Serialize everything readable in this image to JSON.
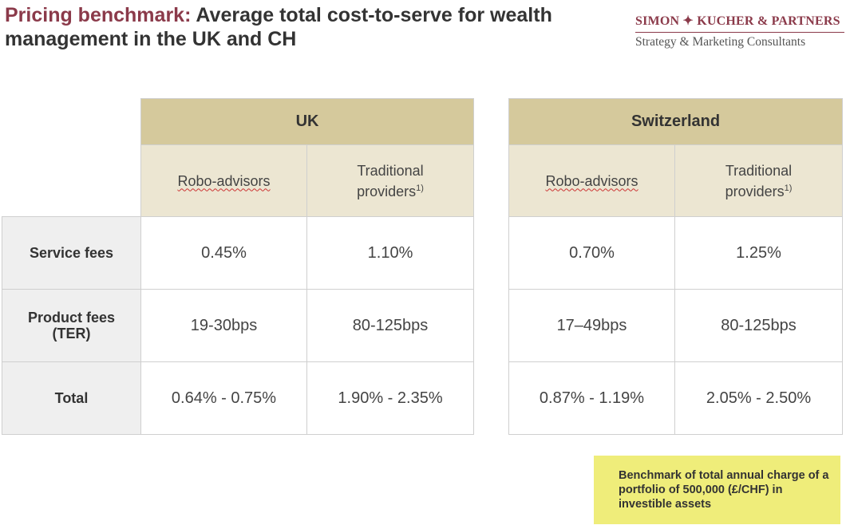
{
  "title": {
    "accent": "Pricing benchmark:",
    "rest": " Average total cost-to-serve for wealth management in the UK and CH"
  },
  "logo": {
    "name": "SIMON ✦ KUCHER & PARTNERS",
    "tagline": "Strategy & Marketing Consultants"
  },
  "uk": {
    "header": "UK",
    "col1": "Robo-advisors",
    "col2_line1": "Traditional",
    "col2_line2": "providers",
    "col2_sup": "1)",
    "rows": [
      {
        "label": "Service fees",
        "robo": "0.45%",
        "trad": "1.10%"
      },
      {
        "label_line1": "Product fees",
        "label_line2": "(TER)",
        "robo": "19-30bps",
        "trad": "80-125bps"
      },
      {
        "label": "Total",
        "robo": "0.64% - 0.75%",
        "trad": "1.90% - 2.35%"
      }
    ]
  },
  "ch": {
    "header": "Switzerland",
    "col1": "Robo-advisors",
    "col2_line1": "Traditional",
    "col2_line2": "providers",
    "col2_sup": "1)",
    "rows": [
      {
        "robo": "0.70%",
        "trad": "1.25%"
      },
      {
        "robo": "17–49bps",
        "trad": "80-125bps"
      },
      {
        "robo": "0.87% - 1.19%",
        "trad": "2.05% - 2.50%"
      }
    ]
  },
  "note": "Benchmark of total annual charge of a portfolio of 500,000 (£/CHF) in investible assets",
  "colors": {
    "accent": "#8b3a4a",
    "header_bg": "#d5c99c",
    "subheader_bg": "#ece6d2",
    "note_bg": "#efed7a"
  }
}
